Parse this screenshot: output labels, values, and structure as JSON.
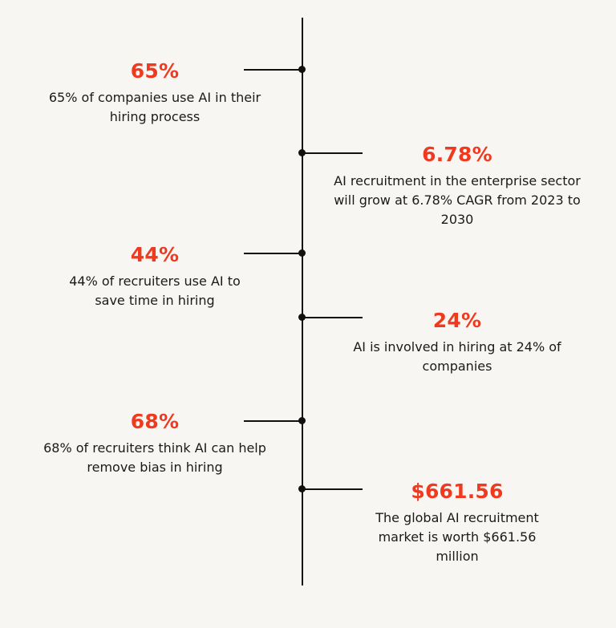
{
  "colors": {
    "background": "#f8f6f3",
    "accent": "#f03a1f",
    "line": "#111111",
    "text": "#1a1a1a"
  },
  "stats": [
    {
      "value": "65%",
      "description": "65% of companies use AI in their hiring process"
    },
    {
      "value": "6.78%",
      "description": "AI recruitment in the enterprise sector will grow at 6.78% CAGR from 2023 to 2030"
    },
    {
      "value": "44%",
      "description": "44% of recruiters use AI to save time in hiring"
    },
    {
      "value": "24%",
      "description": "AI is involved in hiring at 24% of companies"
    },
    {
      "value": "68%",
      "description": "68% of recruiters think AI can help remove bias in hiring"
    },
    {
      "value": "$661.56",
      "description": "The global AI recruitment market is worth $661.56 million"
    }
  ]
}
